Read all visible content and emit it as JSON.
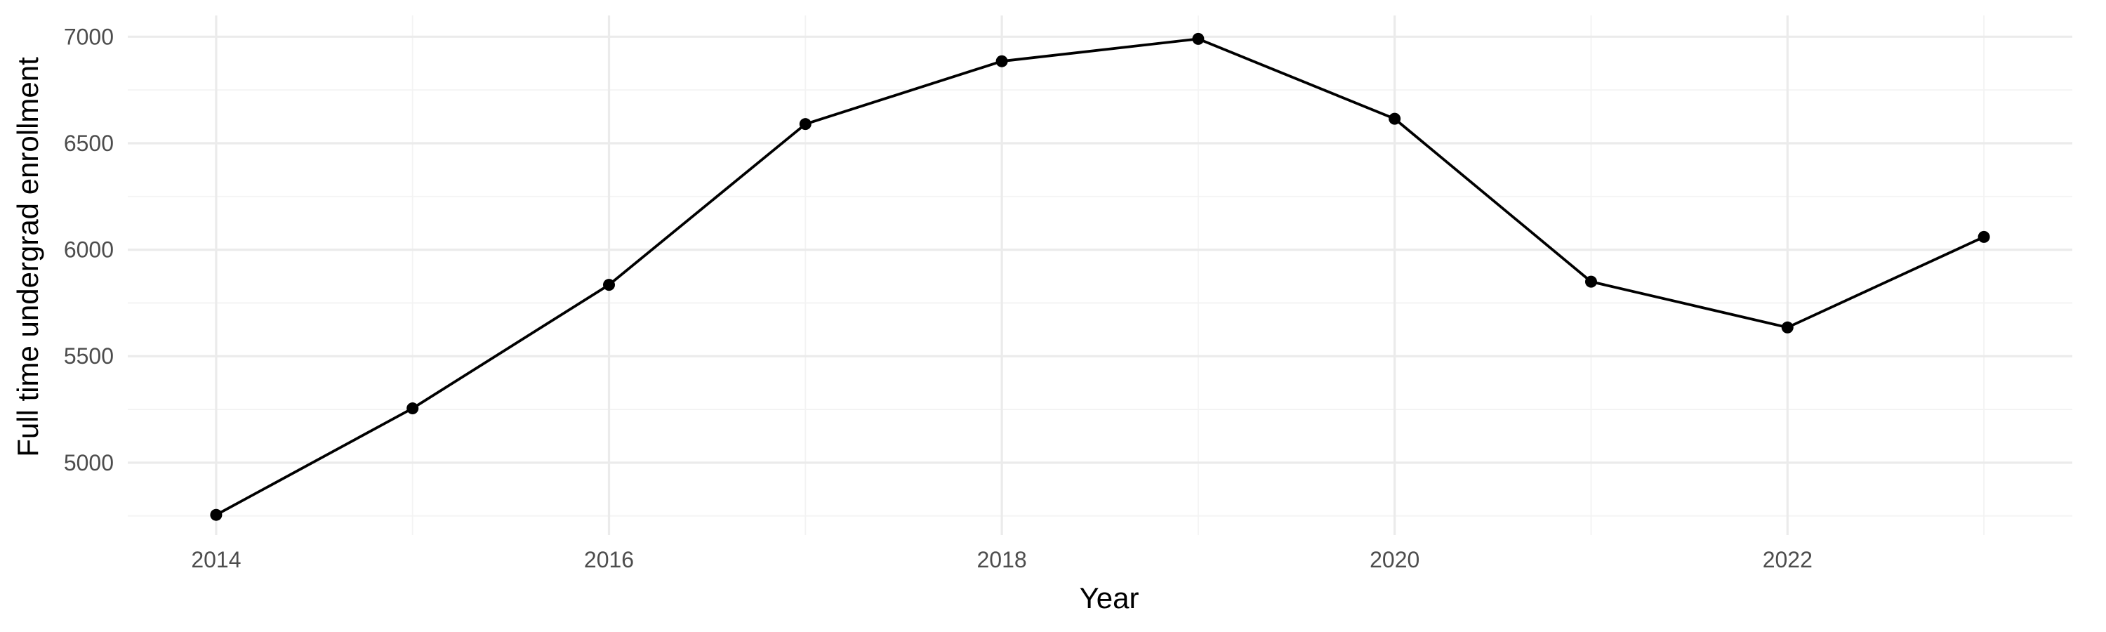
{
  "chart_data": {
    "type": "line",
    "title": "",
    "xlabel": "Year",
    "ylabel": "Full time undergrad enrollment",
    "x": [
      2014,
      2015,
      2016,
      2017,
      2018,
      2019,
      2020,
      2021,
      2022,
      2023
    ],
    "series": [
      {
        "values": [
          4755,
          5255,
          5835,
          6590,
          6885,
          6990,
          6615,
          5850,
          5635,
          6060
        ]
      }
    ],
    "xlim": [
      2013.55,
      2023.45
    ],
    "ylim": [
      4660,
      7100
    ],
    "x_ticks": [
      2014,
      2016,
      2018,
      2020,
      2022
    ],
    "x_tick_labels": [
      "2014",
      "2016",
      "2018",
      "2020",
      "2022"
    ],
    "y_ticks": [
      5000,
      5500,
      6000,
      6500,
      7000
    ],
    "y_tick_labels": [
      "5000",
      "5500",
      "6000",
      "6500",
      "7000"
    ],
    "grid": true,
    "legend": "none",
    "colors": {
      "line": "#000000",
      "point": "#000000",
      "grid_major": "#ebebeb",
      "grid_minor": "#f3f3f3",
      "tick_text": "#4d4d4d",
      "background": "#ffffff"
    }
  }
}
